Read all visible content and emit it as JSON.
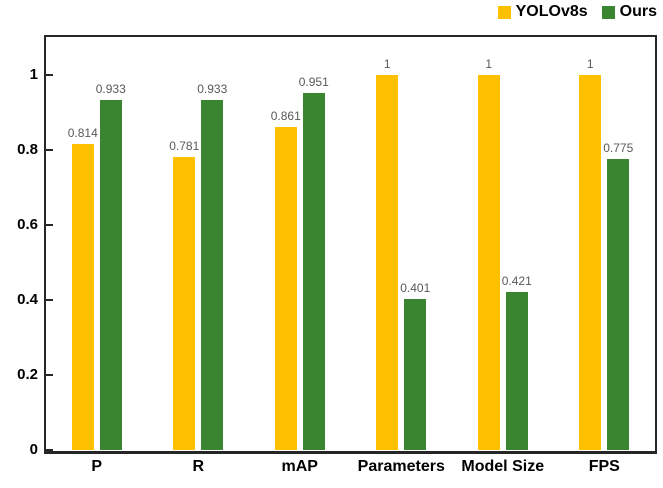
{
  "legend": {
    "items": [
      {
        "label": "YOLOv8s",
        "color": "#FFC000"
      },
      {
        "label": "Ours",
        "color": "#3A8630"
      }
    ]
  },
  "chart_data": {
    "type": "bar",
    "title": "",
    "xlabel": "",
    "ylabel": "",
    "categories": [
      "P",
      "R",
      "mAP",
      "Parameters",
      "Model Size",
      "FPS"
    ],
    "series": [
      {
        "name": "YOLOv8s",
        "color": "#FFC000",
        "values": [
          0.814,
          0.781,
          0.861,
          1,
          1,
          1
        ],
        "value_labels": [
          "0.814",
          "0.781",
          "0.861",
          "1",
          "1",
          "1"
        ]
      },
      {
        "name": "Ours",
        "color": "#3A8630",
        "values": [
          0.933,
          0.933,
          0.951,
          0.401,
          0.421,
          0.775
        ],
        "value_labels": [
          "0.933",
          "0.933",
          "0.951",
          "0.401",
          "0.421",
          "0.775"
        ]
      }
    ],
    "y_ticks": [
      0,
      0.2,
      0.4,
      0.6,
      0.8,
      1
    ],
    "y_tick_labels": [
      "0",
      "0.2",
      "0.4",
      "0.6",
      "0.8",
      "1"
    ],
    "ylim": [
      0,
      1.1
    ],
    "grid": false,
    "legend_position": "top-right",
    "value_label_color": "#595959",
    "axis_color": "#262626"
  }
}
